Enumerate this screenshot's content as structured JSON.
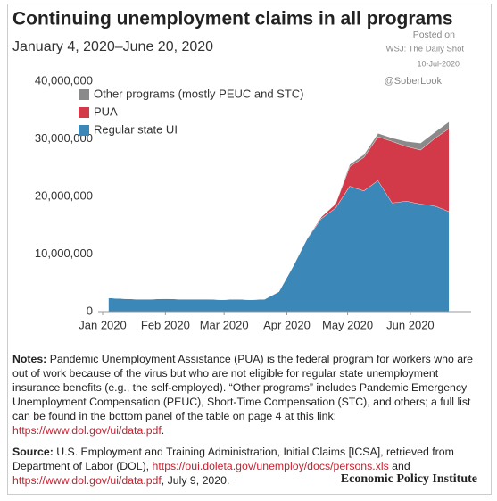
{
  "chart_data": {
    "type": "stacked_area",
    "title": "Continuing unemployment claims in all programs",
    "subtitle": "January 4, 2020–June 20, 2020",
    "watermark": [
      "Posted on",
      "WSJ: The Daily Shot",
      "10-Jul-2020",
      "@SoberLook"
    ],
    "x": [
      "2020-01-04",
      "2020-01-11",
      "2020-01-18",
      "2020-01-25",
      "2020-02-01",
      "2020-02-08",
      "2020-02-15",
      "2020-02-22",
      "2020-02-29",
      "2020-03-07",
      "2020-03-14",
      "2020-03-21",
      "2020-03-28",
      "2020-04-04",
      "2020-04-11",
      "2020-04-18",
      "2020-04-25",
      "2020-05-02",
      "2020-05-09",
      "2020-05-16",
      "2020-05-23",
      "2020-05-30",
      "2020-06-06",
      "2020-06-13",
      "2020-06-20"
    ],
    "series": [
      {
        "name": "Regular state UI",
        "color": "#3a87b8",
        "values": [
          2400000,
          2300000,
          2200000,
          2200000,
          2300000,
          2200000,
          2200000,
          2200000,
          2100000,
          2200000,
          2100000,
          2200000,
          3500000,
          7900000,
          12700000,
          16200000,
          18000000,
          21800000,
          21000000,
          22800000,
          18900000,
          19200000,
          18700000,
          18400000,
          17400000
        ]
      },
      {
        "name": "PUA",
        "color": "#d23a4a",
        "values": [
          0,
          0,
          0,
          0,
          0,
          0,
          0,
          0,
          0,
          0,
          0,
          0,
          0,
          0,
          100000,
          300000,
          700000,
          3400000,
          5800000,
          7600000,
          10700000,
          9500000,
          9400000,
          11700000,
          14400000
        ]
      },
      {
        "name": "Other programs (mostly PEUC and STC)",
        "color": "#8a8a8a",
        "values": [
          0,
          0,
          0,
          0,
          0,
          0,
          0,
          0,
          0,
          0,
          0,
          0,
          0,
          0,
          0,
          0,
          100000,
          400000,
          500000,
          600000,
          600000,
          900000,
          1200000,
          1100000,
          1200000
        ]
      }
    ],
    "xlim": [
      "2020-01-01",
      "2020-07-01"
    ],
    "xticks": [
      {
        "value": "2020-01-01",
        "label": "Jan 2020"
      },
      {
        "value": "2020-02-01",
        "label": "Feb 2020"
      },
      {
        "value": "2020-03-01",
        "label": "Mar 2020"
      },
      {
        "value": "2020-04-01",
        "label": "Apr 2020"
      },
      {
        "value": "2020-05-01",
        "label": "May 2020"
      },
      {
        "value": "2020-06-01",
        "label": "Jun 2020"
      }
    ],
    "ylim": [
      0,
      40000000
    ],
    "yticks": [
      0,
      {
        "value": 10000000,
        "label": "10,000,000"
      },
      {
        "value": 20000000,
        "label": "20,000,000"
      },
      {
        "value": 30000000,
        "label": "30,000,000"
      },
      {
        "value": 40000000,
        "label": "40,000,000"
      }
    ],
    "legend": "top-left",
    "notes": {
      "label": "Notes:",
      "text": "Pandemic Unemployment Assistance (PUA) is the federal program for workers who are out of work because of the virus but who are not eligible for regular state unemployment insurance benefits (e.g., the self-employed). “Other programs” includes Pandemic Emergency Unemployment Compensation (PEUC), Short-Time Compensation (STC), and others; a full list can be found in the bottom panel of the table on page 4 at this link:",
      "link": "https://www.dol.gov/ui/data.pdf",
      "end": "."
    },
    "source": {
      "label": "Source:",
      "text": "U.S. Employment and Training Administration, Initial Claims [ICSA], retrieved from Department of Labor (DOL),",
      "link1": "https://oui.doleta.gov/unemploy/docs/persons.xls",
      "mid": "and",
      "link2": "https://www.dol.gov/ui/data.pdf",
      "end": ", July 9, 2020."
    },
    "credit": "Economic Policy Institute"
  }
}
